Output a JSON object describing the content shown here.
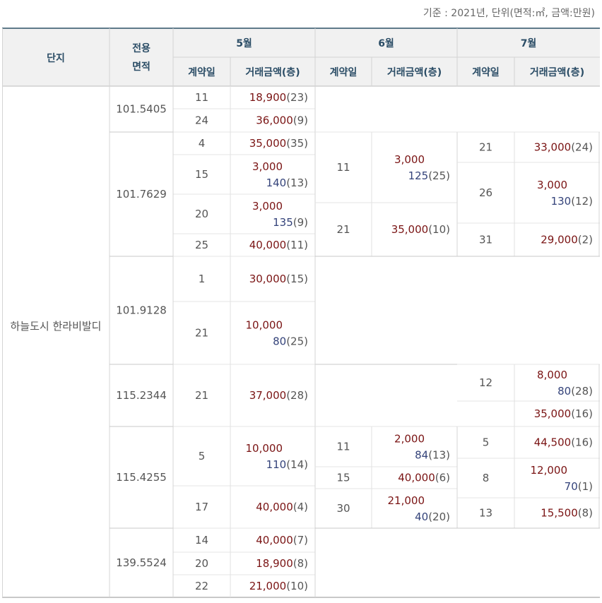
{
  "unit_note": "기준 : 2021년, 단위(면적:㎡, 금액:만원)",
  "header": {
    "complex": "단지",
    "area": "전용\n면적",
    "months": [
      "5월",
      "6월",
      "7월"
    ],
    "sub": {
      "date": "계약일",
      "price": "거래금액(층)"
    }
  },
  "complex_name": "하늘도시 한라비발디",
  "areas": [
    "101.5405",
    "101.7629",
    "101.9128",
    "115.2344",
    "115.4255",
    "139.5524"
  ],
  "deals": {
    "may": [
      {
        "day": "11",
        "price": "18,900",
        "floor": "(23)"
      },
      {
        "day": "24",
        "price": "36,000",
        "floor": "(9)"
      },
      {
        "day": "4",
        "price": "35,000",
        "floor": "(35)"
      },
      {
        "day": "15",
        "price": "3,000",
        "rent": "140",
        "floor": "(13)"
      },
      {
        "day": "20",
        "price": "3,000",
        "rent": "135",
        "floor": "(9)"
      },
      {
        "day": "25",
        "price": "40,000",
        "floor": "(11)"
      },
      {
        "day": "1",
        "price": "30,000",
        "floor": "(15)"
      },
      {
        "day": "21",
        "price": "10,000",
        "rent": "80",
        "floor": "(25)"
      },
      {
        "day": "21",
        "price": "37,000",
        "floor": "(28)"
      },
      {
        "day": "5",
        "price": "10,000",
        "rent": "110",
        "floor": "(14)"
      },
      {
        "day": "17",
        "price": "40,000",
        "floor": "(4)"
      },
      {
        "day": "14",
        "price": "40,000",
        "floor": "(7)"
      },
      {
        "day": "20",
        "price": "18,900",
        "floor": "(8)"
      },
      {
        "day": "22",
        "price": "21,000",
        "floor": "(10)"
      }
    ],
    "jun": [
      {
        "day": "11",
        "price": "3,000",
        "rent": "125",
        "floor": "(25)"
      },
      {
        "day": "21",
        "price": "35,000",
        "floor": "(10)"
      },
      {
        "day": "11",
        "price": "2,000",
        "rent": "84",
        "floor": "(13)"
      },
      {
        "day": "15",
        "price": "40,000",
        "floor": "(6)"
      },
      {
        "day": "30",
        "price": "21,000",
        "rent": "40",
        "floor": "(20)"
      }
    ],
    "jul": [
      {
        "day": "21",
        "price": "33,000",
        "floor": "(24)"
      },
      {
        "day": "26",
        "price": "3,000",
        "rent": "130",
        "floor": "(12)"
      },
      {
        "day": "31",
        "price": "29,000",
        "floor": "(2)"
      },
      {
        "day": "12",
        "price": "8,000",
        "rent": "80",
        "floor": "(28)"
      },
      {
        "day": "",
        "price": "35,000",
        "floor": "(16)"
      },
      {
        "day": "5",
        "price": "44,500",
        "floor": "(16)"
      },
      {
        "day": "8",
        "price": "12,000",
        "rent": "70",
        "floor": "(1)"
      },
      {
        "day": "13",
        "price": "15,500",
        "floor": "(8)"
      }
    ]
  }
}
